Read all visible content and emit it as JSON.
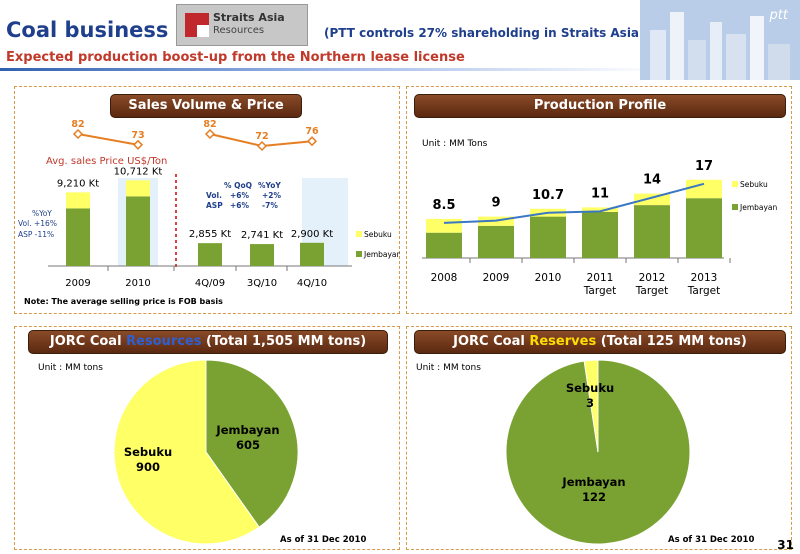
{
  "header": {
    "title": "Coal business",
    "logo": {
      "line1": "Straits Asia",
      "line2": "Resources"
    },
    "note": "(PTT controls 27% shareholding in Straits Asia)",
    "subtitle": "Expected production boost-up from the Northern lease license",
    "brand": "ptt",
    "page_number": "31"
  },
  "colors": {
    "jembayan": "#7aa232",
    "sebuku": "#ffff66",
    "banner": "#6b3416",
    "accent_red": "#c0392b",
    "accent_blue": "#1f3f8c"
  },
  "sales": {
    "banner": "Sales Volume & Price",
    "price_label": "Avg. sales Price US$/Ton",
    "note": "Note: The average selling price is FOB basis",
    "yoy_box": {
      "head": "%YoY",
      "vol": "Vol.  +16%",
      "asp": "ASP   -11%"
    },
    "qoq_box": {
      "h1": "% QoQ",
      "h2": "%YoY",
      "vol_label": "Vol.",
      "vol_qoq": "+6%",
      "vol_yoy": "+2%",
      "asp_label": "ASP",
      "asp_qoq": "+6%",
      "asp_yoy": "-7%"
    },
    "legend": [
      "Sebuku",
      "Jembayan"
    ]
  },
  "production": {
    "banner": "Production Profile",
    "unit": "Unit : MM Tons",
    "legend": [
      "Sebuku",
      "Jembayan"
    ]
  },
  "resources": {
    "banner": {
      "pre": "JORC Coal ",
      "hl": "Resources",
      "post": " (Total 1,505 MM tons)"
    },
    "unit": "Unit : MM tons",
    "asof": "As of 31 Dec 2010"
  },
  "reserves": {
    "banner": {
      "pre": "JORC Coal ",
      "hl": "Reserves",
      "post": " (Total 125 MM tons)"
    },
    "unit": "Unit : MM tons",
    "asof": "As of 31 Dec 2010"
  },
  "chart_data": [
    {
      "type": "bar",
      "title": "Sales Volume & Price",
      "categories": [
        "2009",
        "2010",
        "4Q/09",
        "3Q/10",
        "4Q/10"
      ],
      "totals": [
        9210,
        10712,
        2855,
        2741,
        2900
      ],
      "total_labels": [
        "9,210 Kt",
        "10,712 Kt",
        "2,855 Kt",
        "2,741 Kt",
        "2,900 Kt"
      ],
      "series": [
        {
          "name": "Jembayan",
          "values": [
            7200,
            8700,
            2855,
            2741,
            2900
          ]
        },
        {
          "name": "Sebuku",
          "values": [
            2010,
            2012,
            0,
            0,
            0
          ]
        }
      ],
      "price_line": {
        "name": "Avg. sales Price US$/Ton",
        "values": [
          82,
          73,
          82,
          72,
          76
        ]
      },
      "legend": "right"
    },
    {
      "type": "bar",
      "title": "Production Profile",
      "categories": [
        "2008",
        "2009",
        "2010",
        "2011\nTarget",
        "2012\nTarget",
        "2013\nTarget"
      ],
      "totals": [
        8.5,
        9,
        10.7,
        11,
        14,
        17
      ],
      "series": [
        {
          "name": "Jembayan",
          "values": [
            5.5,
            7,
            9,
            10,
            11.5,
            13
          ]
        },
        {
          "name": "Sebuku",
          "values": [
            3,
            2,
            1.7,
            1,
            2.5,
            4
          ]
        }
      ],
      "ylim": [
        0,
        18
      ],
      "legend": "right"
    },
    {
      "type": "pie",
      "title": "JORC Coal Resources (Total 1,505 MM tons)",
      "slices": [
        {
          "name": "Jembayan",
          "value": 605
        },
        {
          "name": "Sebuku",
          "value": 900
        }
      ]
    },
    {
      "type": "pie",
      "title": "JORC Coal Reserves (Total 125 MM tons)",
      "slices": [
        {
          "name": "Jembayan",
          "value": 122
        },
        {
          "name": "Sebuku",
          "value": 3
        }
      ]
    }
  ]
}
